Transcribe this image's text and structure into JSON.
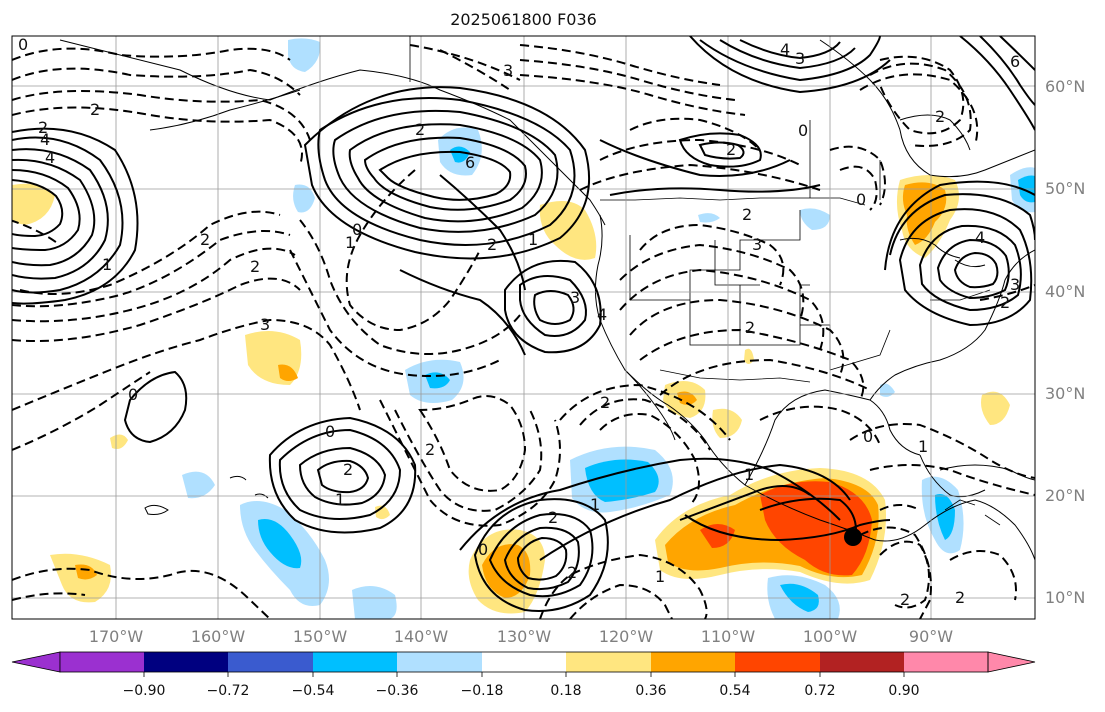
{
  "title": "2025061800 F036",
  "lat_labels": [
    "60°N",
    "50°N",
    "40°N",
    "30°N",
    "20°N",
    "10°N"
  ],
  "lon_labels": [
    "170°W",
    "160°W",
    "150°W",
    "140°W",
    "130°W",
    "120°W",
    "110°W",
    "100°W",
    "90°W"
  ],
  "colorbar": {
    "ticks": [
      "−0.90",
      "−0.72",
      "−0.54",
      "−0.36",
      "−0.18",
      "0.18",
      "0.36",
      "0.54",
      "0.72",
      "0.90"
    ],
    "colors": [
      "#9b30d0",
      "#000080",
      "#3a5bcf",
      "#00bfff",
      "#b0e0ff",
      "#ffffff",
      "#ffe680",
      "#ffa500",
      "#ff4500",
      "#b22222",
      "#ff88aa"
    ]
  },
  "contour_labels": [
    "0",
    "2",
    "4",
    "2",
    "4",
    "6",
    "2",
    "3",
    "3",
    "2",
    "2",
    "1",
    "2",
    "4",
    "3",
    "3",
    "2",
    "2",
    "1",
    "0",
    "2",
    "0",
    "2",
    "1",
    "2",
    "0",
    "1",
    "2",
    "2",
    "1",
    "1",
    "0",
    "1",
    "2",
    "2",
    "1",
    "0",
    "0",
    "2",
    "2",
    "4",
    "3",
    "0",
    "4",
    "3",
    "6",
    "2"
  ]
}
